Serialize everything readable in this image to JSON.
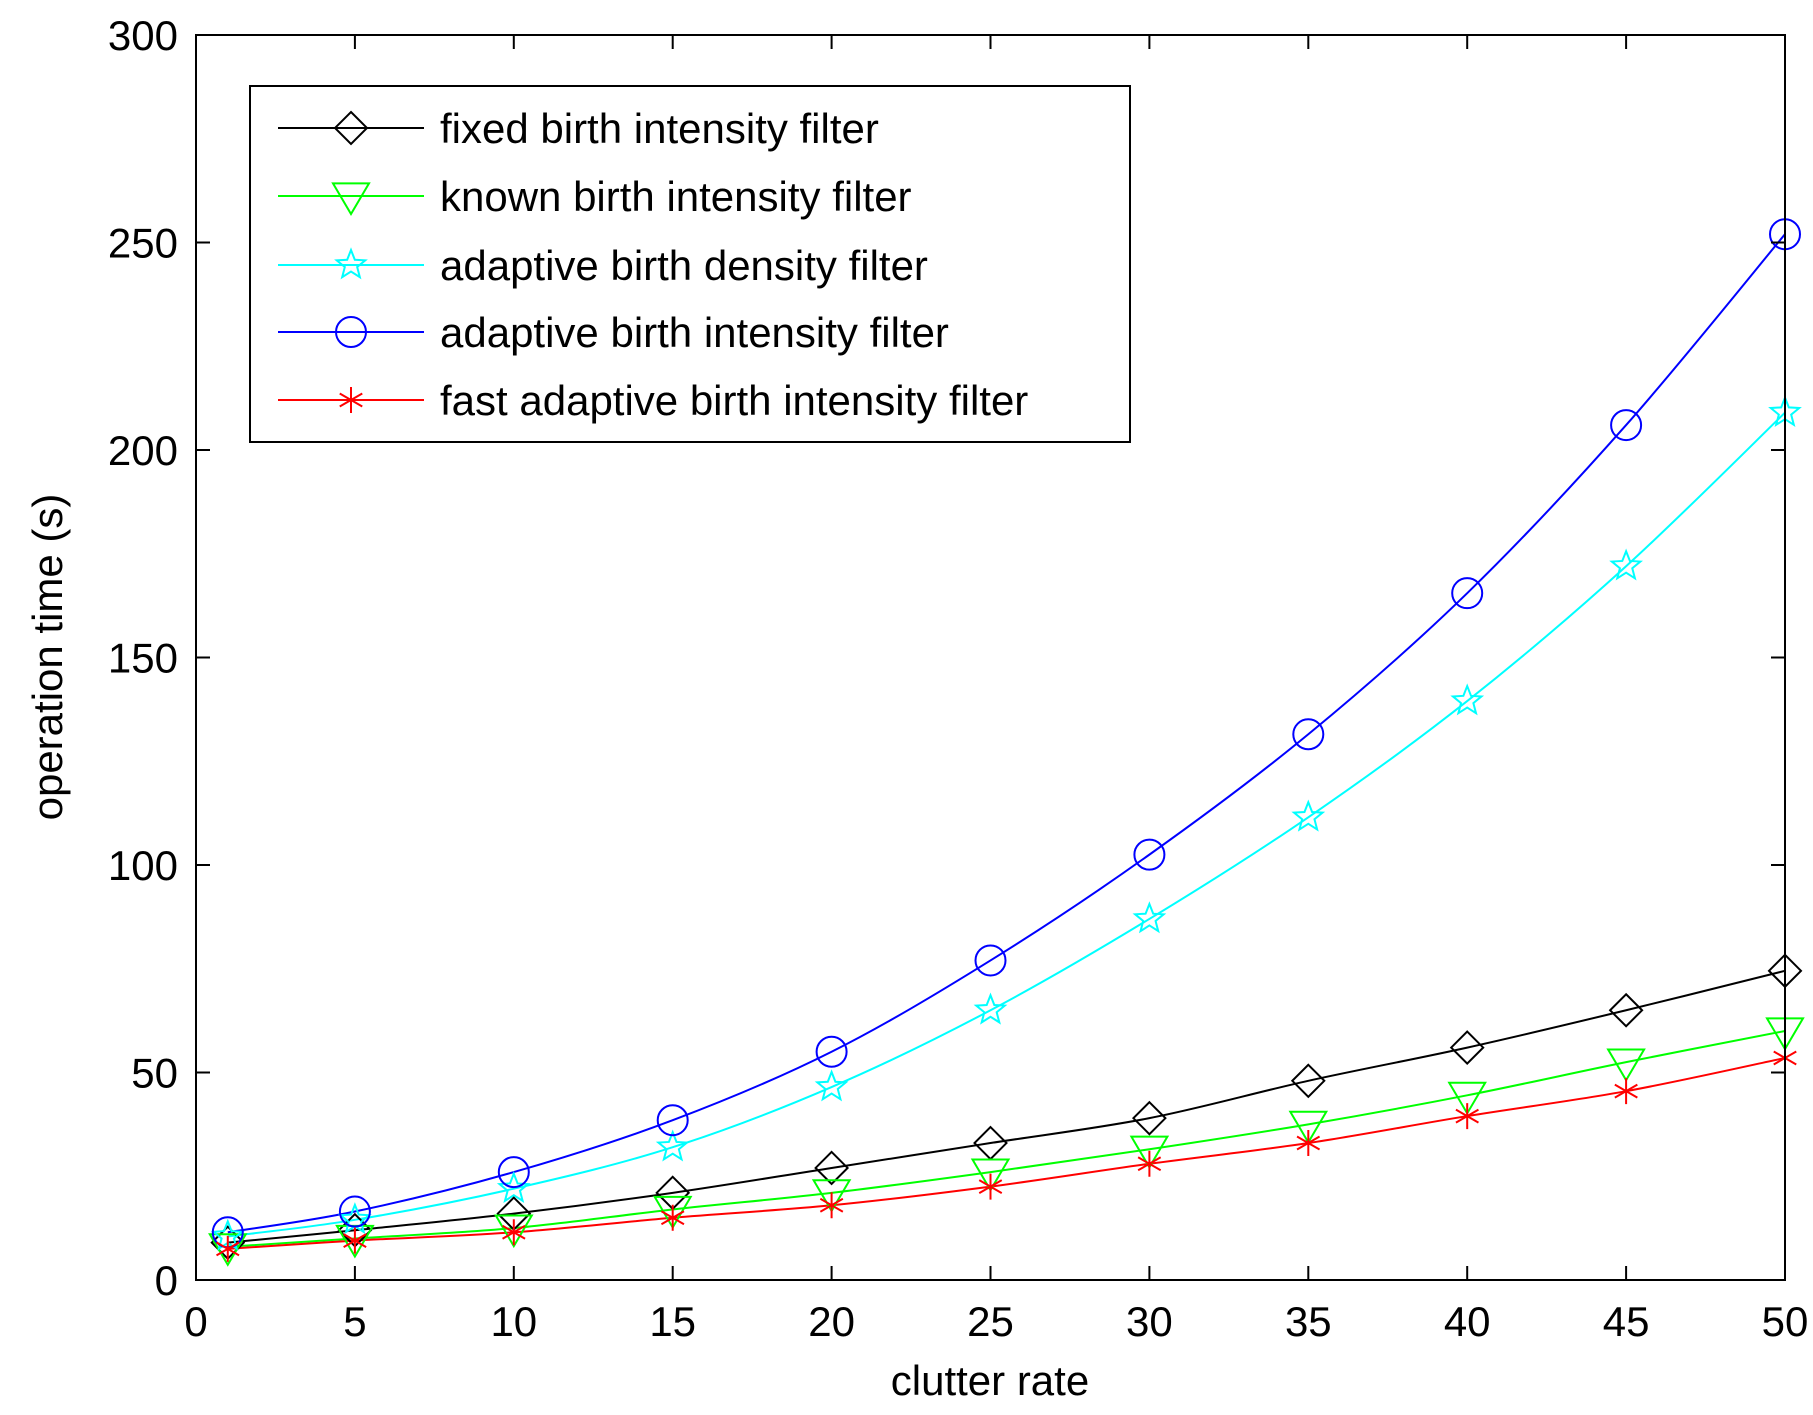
{
  "chart_data": {
    "type": "line",
    "title": "",
    "xlabel": "clutter rate",
    "ylabel": "operation time (s)",
    "xlim": [
      0,
      50
    ],
    "ylim": [
      0,
      300
    ],
    "xticks": [
      0,
      5,
      10,
      15,
      20,
      25,
      30,
      35,
      40,
      45,
      50
    ],
    "yticks": [
      0,
      50,
      100,
      150,
      200,
      250,
      300
    ],
    "grid": false,
    "legend_position": "top-left",
    "x": [
      1,
      5,
      10,
      15,
      20,
      25,
      30,
      35,
      40,
      45,
      50
    ],
    "series": [
      {
        "name": "fixed birth intensity filter",
        "color": "#000000",
        "marker": "diamond",
        "values": [
          9,
          12,
          16,
          21,
          27,
          33,
          39,
          48,
          56,
          65,
          74.5
        ]
      },
      {
        "name": "known birth intensity filter",
        "color": "#00ff00",
        "marker": "triangle-down",
        "values": [
          8,
          10,
          12.5,
          17,
          21,
          26,
          31.5,
          37.5,
          44.5,
          52.5,
          60
        ]
      },
      {
        "name": "adaptive birth density filter",
        "color": "#00ffff",
        "marker": "star",
        "values": [
          10.5,
          14.5,
          22,
          32,
          46.5,
          65,
          87,
          111.5,
          139.5,
          172,
          209
        ]
      },
      {
        "name": "adaptive birth intensity filter",
        "color": "#0000ff",
        "marker": "circle",
        "values": [
          11.5,
          16.5,
          26,
          38.5,
          55,
          77,
          102.5,
          131.5,
          165.5,
          206,
          252
        ]
      },
      {
        "name": "fast adaptive birth intensity filter",
        "color": "#ff0000",
        "marker": "asterisk",
        "values": [
          7.5,
          9.5,
          11.5,
          15,
          18,
          22.5,
          28,
          33,
          39.5,
          45.5,
          53.5
        ]
      }
    ]
  }
}
